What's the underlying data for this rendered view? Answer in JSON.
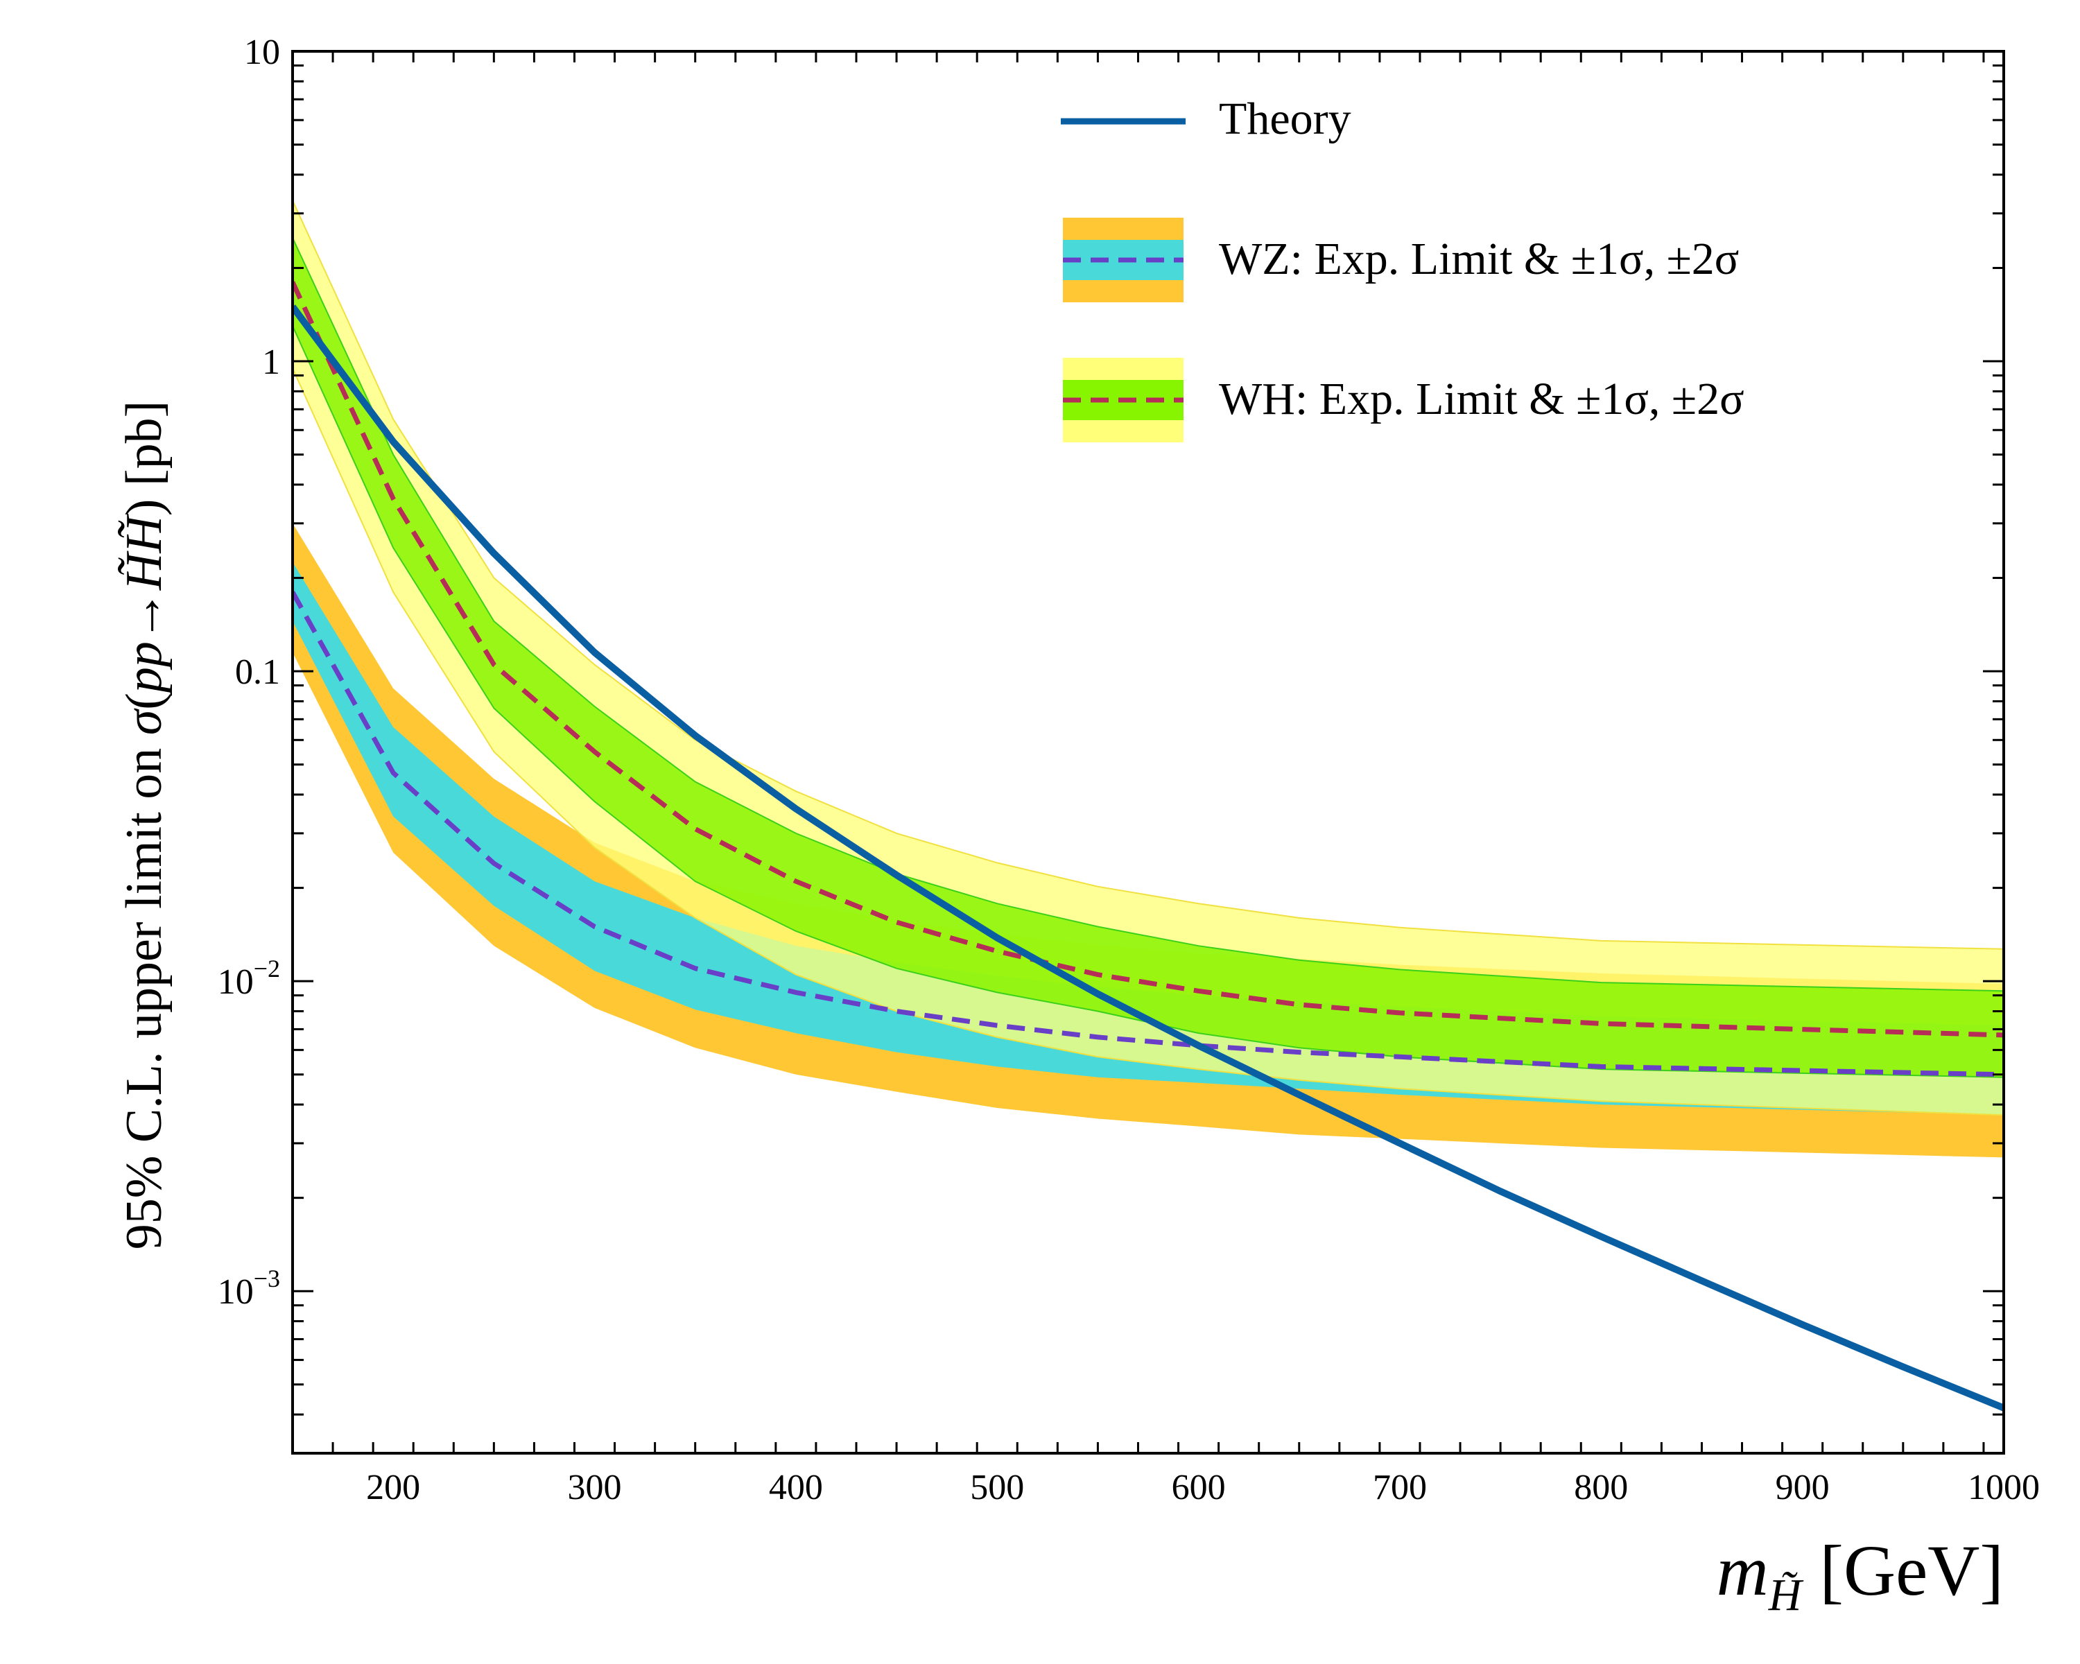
{
  "chart_data": {
    "type": "line",
    "xlabel": "m_H̃ [GeV]",
    "ylabel": "95% C.L. upper limit on σ(pp→H̃H̃) [pb]",
    "xlim": [
      150,
      1000
    ],
    "ylim": [
      0.0003,
      10
    ],
    "yscale": "log",
    "grid": false,
    "legend_position": "top-right",
    "x_ticks": [
      200,
      300,
      400,
      500,
      600,
      700,
      800,
      900,
      1000
    ],
    "y_ticks": [
      {
        "value": 10,
        "label": "10"
      },
      {
        "value": 1,
        "label": "1"
      },
      {
        "value": 0.1,
        "label": "0.1"
      },
      {
        "value": 0.01,
        "base": "10",
        "exp": "−2"
      },
      {
        "value": 0.001,
        "base": "10",
        "exp": "−3"
      }
    ],
    "series": [
      {
        "name": "Theory",
        "color": "#0a5fa3",
        "x": [
          150,
          200,
          250,
          300,
          350,
          400,
          450,
          500,
          550,
          600,
          650,
          700,
          750,
          800,
          850,
          900,
          950,
          1000
        ],
        "y": [
          1.5,
          0.55,
          0.24,
          0.115,
          0.062,
          0.036,
          0.022,
          0.0138,
          0.0091,
          0.0062,
          0.0043,
          0.003,
          0.0021,
          0.0015,
          0.00108,
          0.00078,
          0.00057,
          0.00042
        ]
      },
      {
        "name": "WZ: Exp. Limit & ±1σ, ±2σ",
        "color": "#6a3fc8",
        "band1_color": "#4ad9d9",
        "band2_color": "#ffc733",
        "x": [
          150,
          200,
          250,
          300,
          350,
          400,
          450,
          500,
          550,
          600,
          650,
          700,
          800,
          1000
        ],
        "y": [
          0.18,
          0.047,
          0.024,
          0.015,
          0.011,
          0.0092,
          0.008,
          0.0072,
          0.0066,
          0.0062,
          0.0059,
          0.0057,
          0.0053,
          0.005
        ],
        "band1": {
          "lower": [
            0.145,
            0.034,
            0.0175,
            0.0108,
            0.0081,
            0.0068,
            0.0059,
            0.0053,
            0.0049,
            0.0047,
            0.0045,
            0.0043,
            0.004,
            0.0037
          ],
          "upper": [
            0.225,
            0.066,
            0.034,
            0.021,
            0.016,
            0.013,
            0.0115,
            0.0104,
            0.0096,
            0.009,
            0.0086,
            0.0083,
            0.0077,
            0.0072
          ]
        },
        "band2": {
          "lower": [
            0.115,
            0.026,
            0.013,
            0.0082,
            0.0061,
            0.005,
            0.0044,
            0.0039,
            0.0036,
            0.0034,
            0.0032,
            0.0031,
            0.0029,
            0.0027
          ],
          "upper": [
            0.3,
            0.088,
            0.045,
            0.028,
            0.021,
            0.0178,
            0.0157,
            0.0142,
            0.0131,
            0.0123,
            0.0118,
            0.0113,
            0.0106,
            0.0098
          ]
        }
      },
      {
        "name": "WH: Exp. Limit & ±1σ, ±2σ",
        "color": "#b62d57",
        "band1_color": "#88f500",
        "band2_color": "#ffff7a",
        "x": [
          150,
          200,
          250,
          300,
          350,
          400,
          450,
          500,
          550,
          600,
          650,
          700,
          800,
          1000
        ],
        "y": [
          1.8,
          0.36,
          0.105,
          0.055,
          0.031,
          0.021,
          0.0155,
          0.0125,
          0.0105,
          0.0093,
          0.0084,
          0.0079,
          0.0073,
          0.0067
        ],
        "band1": {
          "lower": [
            1.3,
            0.25,
            0.076,
            0.038,
            0.021,
            0.0145,
            0.011,
            0.0092,
            0.008,
            0.0068,
            0.0061,
            0.0057,
            0.0052,
            0.0049
          ],
          "upper": [
            2.5,
            0.5,
            0.145,
            0.077,
            0.044,
            0.03,
            0.0222,
            0.0178,
            0.015,
            0.013,
            0.0117,
            0.0109,
            0.0099,
            0.0093
          ]
        },
        "band2": {
          "lower": [
            0.95,
            0.18,
            0.055,
            0.027,
            0.016,
            0.0105,
            0.008,
            0.0066,
            0.0057,
            0.0052,
            0.0048,
            0.0045,
            0.0041,
            0.0037
          ],
          "upper": [
            3.3,
            0.65,
            0.2,
            0.105,
            0.06,
            0.041,
            0.03,
            0.0241,
            0.0202,
            0.0178,
            0.016,
            0.0149,
            0.0135,
            0.0127
          ]
        }
      }
    ]
  }
}
